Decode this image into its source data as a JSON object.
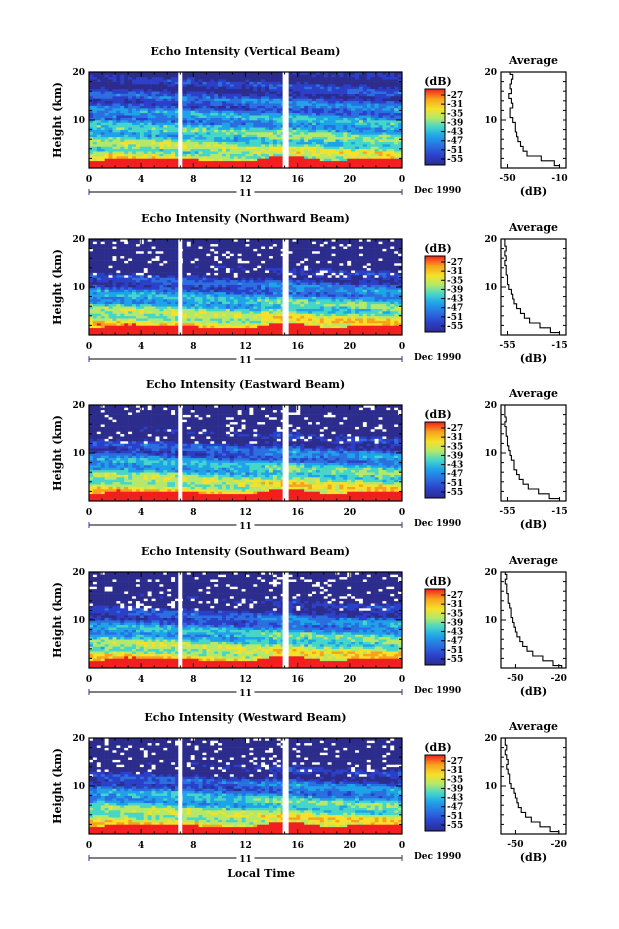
{
  "chart_data": [
    {
      "type": "heatmap",
      "title": "Echo Intensity (Vertical Beam)",
      "ylabel": "Height (km)",
      "x_ticks": [
        "0",
        "4",
        "8",
        "12",
        "16",
        "20",
        "0"
      ],
      "y_ticks": [
        "20",
        "10"
      ],
      "xlim": [
        0,
        24
      ],
      "ylim": [
        0,
        20
      ],
      "date_marker": "11",
      "date_label": "Dec 1990",
      "colorbar": {
        "unit": "(dB)",
        "ticks": [
          "-27",
          "-31",
          "-35",
          "-39",
          "-43",
          "-47",
          "-51",
          "-55"
        ]
      },
      "data_gaps_hours": [
        7.0,
        15.0
      ],
      "average": {
        "title": "Average",
        "xlabel": "(dB)",
        "x_ticks": [
          "-50",
          "-10"
        ],
        "y_ticks": [
          "20",
          "10"
        ],
        "xlim": [
          -55,
          -5
        ],
        "ylim": [
          0,
          20
        ],
        "profile": {
          "height_km": [
            0,
            1,
            2,
            3,
            4,
            5,
            6,
            7,
            8,
            9,
            10,
            11,
            12,
            13,
            14,
            15,
            16,
            17,
            18,
            19,
            20
          ],
          "value_db": [
            -10,
            -14,
            -24,
            -35,
            -38,
            -40,
            -42,
            -43,
            -44,
            -44,
            -46,
            -48,
            -48,
            -46,
            -47,
            -49,
            -47,
            -48,
            -47,
            -46,
            -48
          ]
        }
      }
    },
    {
      "type": "heatmap",
      "title": "Echo Intensity (Northward Beam)",
      "ylabel": "Height (km)",
      "x_ticks": [
        "0",
        "4",
        "8",
        "12",
        "16",
        "20",
        "0"
      ],
      "y_ticks": [
        "20",
        "10"
      ],
      "xlim": [
        0,
        24
      ],
      "ylim": [
        0,
        20
      ],
      "date_marker": "11",
      "date_label": "Dec 1990",
      "colorbar": {
        "unit": "(dB)",
        "ticks": [
          "-27",
          "-31",
          "-35",
          "-39",
          "-43",
          "-47",
          "-51",
          "-55"
        ]
      },
      "data_gaps_hours": [
        7.0,
        15.0
      ],
      "average": {
        "title": "Average",
        "xlabel": "(dB)",
        "x_ticks": [
          "-55",
          "-15"
        ],
        "y_ticks": [
          "20",
          "10"
        ],
        "xlim": [
          -60,
          -10
        ],
        "ylim": [
          0,
          20
        ],
        "profile": {
          "height_km": [
            0,
            1,
            2,
            3,
            4,
            5,
            6,
            7,
            8,
            9,
            10,
            11,
            12,
            13,
            14,
            15,
            16,
            17,
            18,
            19,
            20
          ],
          "value_db": [
            -15,
            -22,
            -30,
            -38,
            -42,
            -45,
            -48,
            -50,
            -51,
            -52,
            -54,
            -55,
            -55,
            -56,
            -56,
            -57,
            -56,
            -57,
            -56,
            -57,
            -57
          ]
        }
      }
    },
    {
      "type": "heatmap",
      "title": "Echo Intensity (Eastward Beam)",
      "ylabel": "Height (km)",
      "x_ticks": [
        "0",
        "4",
        "8",
        "12",
        "16",
        "20",
        "0"
      ],
      "y_ticks": [
        "20",
        "10"
      ],
      "xlim": [
        0,
        24
      ],
      "ylim": [
        0,
        20
      ],
      "date_marker": "11",
      "date_label": "Dec 1990",
      "colorbar": {
        "unit": "(dB)",
        "ticks": [
          "-27",
          "-31",
          "-35",
          "-39",
          "-43",
          "-47",
          "-51",
          "-55"
        ]
      },
      "data_gaps_hours": [
        7.0,
        15.0
      ],
      "average": {
        "title": "Average",
        "xlabel": "(dB)",
        "x_ticks": [
          "-55",
          "-15"
        ],
        "y_ticks": [
          "20",
          "10"
        ],
        "xlim": [
          -60,
          -10
        ],
        "ylim": [
          0,
          20
        ],
        "profile": {
          "height_km": [
            0,
            1,
            2,
            3,
            4,
            5,
            6,
            7,
            8,
            9,
            10,
            11,
            12,
            13,
            14,
            15,
            16,
            17,
            18,
            19,
            20
          ],
          "value_db": [
            -15,
            -23,
            -31,
            -39,
            -43,
            -46,
            -48,
            -50,
            -50,
            -52,
            -53,
            -54,
            -55,
            -55,
            -56,
            -56,
            -57,
            -56,
            -57,
            -57,
            -57
          ]
        }
      }
    },
    {
      "type": "heatmap",
      "title": "Echo Intensity (Southward Beam)",
      "ylabel": "Height (km)",
      "x_ticks": [
        "0",
        "4",
        "8",
        "12",
        "16",
        "20",
        "0"
      ],
      "y_ticks": [
        "20",
        "10"
      ],
      "xlim": [
        0,
        24
      ],
      "ylim": [
        0,
        20
      ],
      "date_marker": "11",
      "date_label": "Dec 1990",
      "colorbar": {
        "unit": "(dB)",
        "ticks": [
          "-27",
          "-31",
          "-35",
          "-39",
          "-43",
          "-47",
          "-51",
          "-55"
        ]
      },
      "data_gaps_hours": [
        7.0,
        15.0
      ],
      "average": {
        "title": "Average",
        "xlabel": "(dB)",
        "x_ticks": [
          "-50",
          "-20"
        ],
        "y_ticks": [
          "20",
          "10"
        ],
        "xlim": [
          -60,
          -15
        ],
        "ylim": [
          0,
          20
        ],
        "profile": {
          "height_km": [
            0,
            1,
            2,
            3,
            4,
            5,
            6,
            7,
            8,
            9,
            10,
            11,
            12,
            13,
            14,
            15,
            16,
            17,
            18,
            19,
            20
          ],
          "value_db": [
            -18,
            -24,
            -31,
            -38,
            -42,
            -45,
            -47,
            -49,
            -50,
            -51,
            -52,
            -53,
            -53,
            -54,
            -55,
            -55,
            -56,
            -56,
            -57,
            -56,
            -57
          ]
        }
      }
    },
    {
      "type": "heatmap",
      "title": "Echo Intensity (Westward Beam)",
      "ylabel": "Height (km)",
      "x_ticks": [
        "0",
        "4",
        "8",
        "12",
        "16",
        "20",
        "0"
      ],
      "y_ticks": [
        "20",
        "10"
      ],
      "xlim": [
        0,
        24
      ],
      "ylim": [
        0,
        20
      ],
      "date_marker": "11",
      "date_label": "Dec 1990",
      "xlabel": "Local Time",
      "colorbar": {
        "unit": "(dB)",
        "ticks": [
          "-27",
          "-31",
          "-35",
          "-39",
          "-43",
          "-47",
          "-51",
          "-55"
        ]
      },
      "data_gaps_hours": [
        7.0,
        15.0
      ],
      "average": {
        "title": "Average",
        "xlabel": "(dB)",
        "x_ticks": [
          "-50",
          "-20"
        ],
        "y_ticks": [
          "20",
          "10"
        ],
        "xlim": [
          -60,
          -15
        ],
        "ylim": [
          0,
          20
        ],
        "profile": {
          "height_km": [
            0,
            1,
            2,
            3,
            4,
            5,
            6,
            7,
            8,
            9,
            10,
            11,
            12,
            13,
            14,
            15,
            16,
            17,
            18,
            19,
            20
          ],
          "value_db": [
            -20,
            -26,
            -33,
            -39,
            -43,
            -46,
            -48,
            -49,
            -50,
            -51,
            -53,
            -54,
            -54,
            -55,
            -56,
            -55,
            -56,
            -57,
            -56,
            -57,
            -57
          ]
        }
      }
    }
  ],
  "colorscale": [
    "#f21f1f",
    "#f7a21d",
    "#f5e12a",
    "#b4e86a",
    "#46d6c9",
    "#1fa3e8",
    "#2a6fe0",
    "#2b3fc8",
    "#2c2c8c"
  ]
}
